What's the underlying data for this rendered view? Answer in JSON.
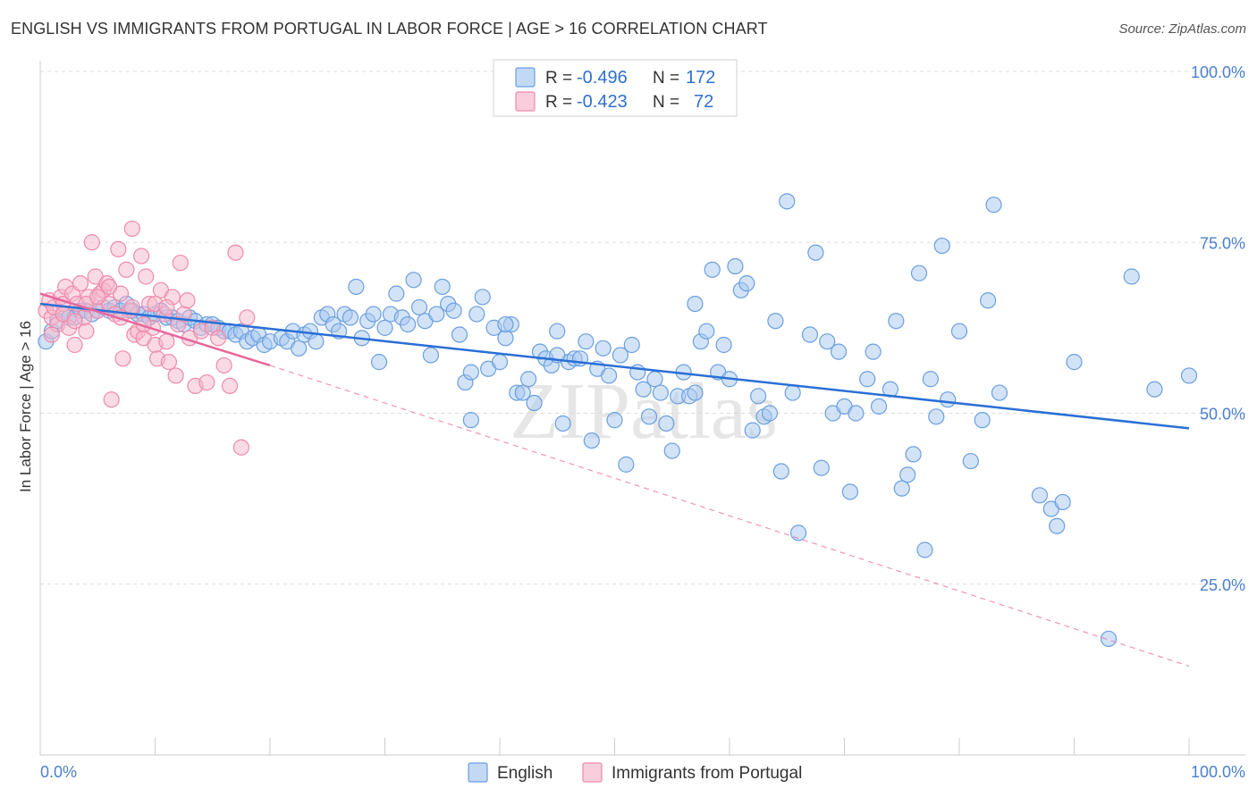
{
  "title": "ENGLISH VS IMMIGRANTS FROM PORTUGAL IN LABOR FORCE | AGE > 16 CORRELATION CHART",
  "source": "Source: ZipAtlas.com",
  "watermark": "ZIPatlas",
  "colors": {
    "english_fill": "#a8c8f0",
    "english_stroke": "#6a9fe0",
    "english_line": "#2a6fd6",
    "portugal_fill": "#f6b8cc",
    "portugal_stroke": "#ee8aab",
    "portugal_line": "#e8679a",
    "tick_text": "#4a7fd0",
    "grid": "#dddddd"
  },
  "legend": {
    "rows": [
      {
        "r_label": "R =",
        "r_value": "-0.496",
        "n_label": "N =",
        "n_value": "172"
      },
      {
        "r_label": "R =",
        "r_value": "-0.423",
        "n_label": "N =",
        "n_value": "72"
      }
    ]
  },
  "bottom_legend": [
    "English",
    "Immigrants from Portugal"
  ],
  "chart_data": {
    "type": "scatter",
    "xlabel": "",
    "ylabel": "In Labor Force | Age > 16",
    "xlim": [
      0,
      100
    ],
    "ylim": [
      0,
      100
    ],
    "x_tick_labels": [
      "0.0%",
      "100.0%"
    ],
    "y_tick_labels": [
      "100.0%",
      "75.0%",
      "50.0%",
      "25.0%"
    ],
    "y_tick_values": [
      100,
      75,
      50,
      25
    ],
    "grid": true,
    "legend_position": "top-center",
    "series": [
      {
        "name": "English",
        "r": -0.496,
        "n": 172,
        "trend": {
          "x": [
            0,
            100
          ],
          "y": [
            66.0,
            47.8
          ],
          "style": "solid"
        },
        "points": [
          [
            0.5,
            60.5
          ],
          [
            1.0,
            62.0
          ],
          [
            1.5,
            63.5
          ],
          [
            2.0,
            64.5
          ],
          [
            2.5,
            64.0
          ],
          [
            3.0,
            64.0
          ],
          [
            3.5,
            65.0
          ],
          [
            4.0,
            65.0
          ],
          [
            4.5,
            64.5
          ],
          [
            5.0,
            65.0
          ],
          [
            5.5,
            65.5
          ],
          [
            6.0,
            65.0
          ],
          [
            6.5,
            65.5
          ],
          [
            7.0,
            65.0
          ],
          [
            7.5,
            66.0
          ],
          [
            8.0,
            65.0
          ],
          [
            8.5,
            64.5
          ],
          [
            9.0,
            64.5
          ],
          [
            9.5,
            64.0
          ],
          [
            10.0,
            64.5
          ],
          [
            10.5,
            65.0
          ],
          [
            11.0,
            64.0
          ],
          [
            11.5,
            64.0
          ],
          [
            12.0,
            63.5
          ],
          [
            12.5,
            63.0
          ],
          [
            13.0,
            64.0
          ],
          [
            13.5,
            63.5
          ],
          [
            14.0,
            62.5
          ],
          [
            14.5,
            63.0
          ],
          [
            15.0,
            63.0
          ],
          [
            15.5,
            62.5
          ],
          [
            16.0,
            62.0
          ],
          [
            16.5,
            62.0
          ],
          [
            17.0,
            61.5
          ],
          [
            17.5,
            62.0
          ],
          [
            18.0,
            60.5
          ],
          [
            18.5,
            61.0
          ],
          [
            19.0,
            61.5
          ],
          [
            19.5,
            60.0
          ],
          [
            20.0,
            60.5
          ],
          [
            21.0,
            61.0
          ],
          [
            21.5,
            60.5
          ],
          [
            22.0,
            62.0
          ],
          [
            22.5,
            59.5
          ],
          [
            23.0,
            61.5
          ],
          [
            23.5,
            62.0
          ],
          [
            24.0,
            60.5
          ],
          [
            24.5,
            64.0
          ],
          [
            25.0,
            64.5
          ],
          [
            25.5,
            63.0
          ],
          [
            26.0,
            62.0
          ],
          [
            26.5,
            64.5
          ],
          [
            27.0,
            64.0
          ],
          [
            27.5,
            68.5
          ],
          [
            28.0,
            61.0
          ],
          [
            28.5,
            63.5
          ],
          [
            29.0,
            64.5
          ],
          [
            29.5,
            57.5
          ],
          [
            30.0,
            62.5
          ],
          [
            30.5,
            64.5
          ],
          [
            31.0,
            67.5
          ],
          [
            31.5,
            64.0
          ],
          [
            32.0,
            63.0
          ],
          [
            32.5,
            69.5
          ],
          [
            33.0,
            65.5
          ],
          [
            33.5,
            63.5
          ],
          [
            34.0,
            58.5
          ],
          [
            34.5,
            64.5
          ],
          [
            35.0,
            68.5
          ],
          [
            35.5,
            66.0
          ],
          [
            36.0,
            65.0
          ],
          [
            36.5,
            61.5
          ],
          [
            37.0,
            54.5
          ],
          [
            37.5,
            49.0
          ],
          [
            38.0,
            64.5
          ],
          [
            38.5,
            67.0
          ],
          [
            39.0,
            56.5
          ],
          [
            39.5,
            62.5
          ],
          [
            40.0,
            57.5
          ],
          [
            40.5,
            61.0
          ],
          [
            41.0,
            63.0
          ],
          [
            41.5,
            53.0
          ],
          [
            42.0,
            53.0
          ],
          [
            42.5,
            55.0
          ],
          [
            43.0,
            51.5
          ],
          [
            43.5,
            59.0
          ],
          [
            44.0,
            58.0
          ],
          [
            44.5,
            57.0
          ],
          [
            45.0,
            62.0
          ],
          [
            45.5,
            48.5
          ],
          [
            46.0,
            57.5
          ],
          [
            46.5,
            58.0
          ],
          [
            47.0,
            58.0
          ],
          [
            47.5,
            60.5
          ],
          [
            48.0,
            46.0
          ],
          [
            48.5,
            56.5
          ],
          [
            49.0,
            59.5
          ],
          [
            49.5,
            55.5
          ],
          [
            50.0,
            49.0
          ],
          [
            50.5,
            58.5
          ],
          [
            51.0,
            42.5
          ],
          [
            51.5,
            60.0
          ],
          [
            52.0,
            56.0
          ],
          [
            52.5,
            53.5
          ],
          [
            53.0,
            49.5
          ],
          [
            53.5,
            55.0
          ],
          [
            54.0,
            53.0
          ],
          [
            54.5,
            48.5
          ],
          [
            55.0,
            44.5
          ],
          [
            55.5,
            52.5
          ],
          [
            56.0,
            56.0
          ],
          [
            56.5,
            52.5
          ],
          [
            57.0,
            66.0
          ],
          [
            57.5,
            60.5
          ],
          [
            58.0,
            62.0
          ],
          [
            58.5,
            71.0
          ],
          [
            59.0,
            56.0
          ],
          [
            59.5,
            60.0
          ],
          [
            60.0,
            55.0
          ],
          [
            60.5,
            71.5
          ],
          [
            61.0,
            68.0
          ],
          [
            61.5,
            69.0
          ],
          [
            62.0,
            47.5
          ],
          [
            62.5,
            52.5
          ],
          [
            63.0,
            49.5
          ],
          [
            63.5,
            50.0
          ],
          [
            64.0,
            63.5
          ],
          [
            64.5,
            41.5
          ],
          [
            65.0,
            81.0
          ],
          [
            65.5,
            53.0
          ],
          [
            66.0,
            32.5
          ],
          [
            67.0,
            61.5
          ],
          [
            67.5,
            73.5
          ],
          [
            68.0,
            42.0
          ],
          [
            68.5,
            60.5
          ],
          [
            69.0,
            50.0
          ],
          [
            69.5,
            59.0
          ],
          [
            70.0,
            51.0
          ],
          [
            70.5,
            38.5
          ],
          [
            71.0,
            50.0
          ],
          [
            72.0,
            55.0
          ],
          [
            72.5,
            59.0
          ],
          [
            73.0,
            51.0
          ],
          [
            74.0,
            53.5
          ],
          [
            74.5,
            63.5
          ],
          [
            75.0,
            39.0
          ],
          [
            75.5,
            41.0
          ],
          [
            76.0,
            44.0
          ],
          [
            76.5,
            70.5
          ],
          [
            77.0,
            30.0
          ],
          [
            77.5,
            55.0
          ],
          [
            78.0,
            49.5
          ],
          [
            78.5,
            74.5
          ],
          [
            79.0,
            52.0
          ],
          [
            80.0,
            62.0
          ],
          [
            81.0,
            43.0
          ],
          [
            82.0,
            49.0
          ],
          [
            82.5,
            66.5
          ],
          [
            83.0,
            80.5
          ],
          [
            83.5,
            53.0
          ],
          [
            87.0,
            38.0
          ],
          [
            88.0,
            36.0
          ],
          [
            88.5,
            33.5
          ],
          [
            89.0,
            37.0
          ],
          [
            90.0,
            57.5
          ],
          [
            93.0,
            17.0
          ],
          [
            95.0,
            70.0
          ],
          [
            97.0,
            53.5
          ],
          [
            100.0,
            55.5
          ],
          [
            40.5,
            63.0
          ],
          [
            37.5,
            56.0
          ],
          [
            45.0,
            58.5
          ],
          [
            57.0,
            53.0
          ]
        ]
      },
      {
        "name": "Immigrants from Portugal",
        "r": -0.423,
        "n": 72,
        "trend": {
          "x": [
            0,
            20
          ],
          "y": [
            67.5,
            57.0
          ],
          "style": "solid",
          "extended": {
            "x": [
              20,
              100
            ],
            "y": [
              57.0,
              13.0
            ],
            "style": "dashed"
          }
        },
        "points": [
          [
            0.5,
            65.0
          ],
          [
            0.8,
            66.5
          ],
          [
            1.0,
            64.0
          ],
          [
            1.2,
            65.5
          ],
          [
            1.5,
            63.0
          ],
          [
            1.8,
            67.0
          ],
          [
            2.0,
            66.0
          ],
          [
            2.2,
            68.5
          ],
          [
            2.5,
            62.5
          ],
          [
            2.8,
            67.5
          ],
          [
            3.0,
            60.0
          ],
          [
            3.2,
            66.0
          ],
          [
            3.5,
            69.0
          ],
          [
            3.8,
            64.0
          ],
          [
            4.0,
            62.0
          ],
          [
            4.2,
            67.0
          ],
          [
            4.5,
            75.0
          ],
          [
            4.8,
            70.0
          ],
          [
            5.0,
            65.0
          ],
          [
            5.2,
            67.5
          ],
          [
            5.5,
            68.0
          ],
          [
            5.8,
            69.0
          ],
          [
            6.0,
            66.0
          ],
          [
            6.2,
            52.0
          ],
          [
            6.5,
            64.5
          ],
          [
            6.8,
            74.0
          ],
          [
            7.0,
            67.5
          ],
          [
            7.2,
            58.0
          ],
          [
            7.5,
            71.0
          ],
          [
            7.8,
            65.0
          ],
          [
            8.0,
            77.0
          ],
          [
            8.2,
            61.5
          ],
          [
            8.5,
            62.0
          ],
          [
            8.8,
            73.0
          ],
          [
            9.0,
            61.0
          ],
          [
            9.2,
            70.0
          ],
          [
            9.5,
            66.0
          ],
          [
            9.8,
            62.5
          ],
          [
            10.0,
            60.0
          ],
          [
            10.2,
            58.0
          ],
          [
            10.5,
            68.0
          ],
          [
            10.8,
            64.5
          ],
          [
            11.0,
            60.5
          ],
          [
            11.2,
            57.5
          ],
          [
            11.5,
            67.0
          ],
          [
            11.8,
            55.5
          ],
          [
            12.0,
            63.0
          ],
          [
            12.2,
            72.0
          ],
          [
            12.5,
            64.5
          ],
          [
            12.8,
            66.5
          ],
          [
            13.0,
            61.0
          ],
          [
            13.5,
            54.0
          ],
          [
            14.0,
            62.0
          ],
          [
            14.5,
            54.5
          ],
          [
            15.0,
            62.5
          ],
          [
            15.5,
            61.0
          ],
          [
            16.0,
            57.0
          ],
          [
            16.5,
            54.0
          ],
          [
            17.0,
            73.5
          ],
          [
            17.5,
            45.0
          ],
          [
            18.0,
            64.0
          ],
          [
            1.0,
            61.5
          ],
          [
            2.0,
            64.5
          ],
          [
            3.0,
            63.5
          ],
          [
            4.0,
            66.0
          ],
          [
            5.0,
            67.0
          ],
          [
            6.0,
            68.5
          ],
          [
            7.0,
            64.0
          ],
          [
            8.0,
            65.5
          ],
          [
            9.0,
            63.0
          ],
          [
            10.0,
            66.0
          ],
          [
            11.0,
            65.5
          ]
        ]
      }
    ]
  }
}
